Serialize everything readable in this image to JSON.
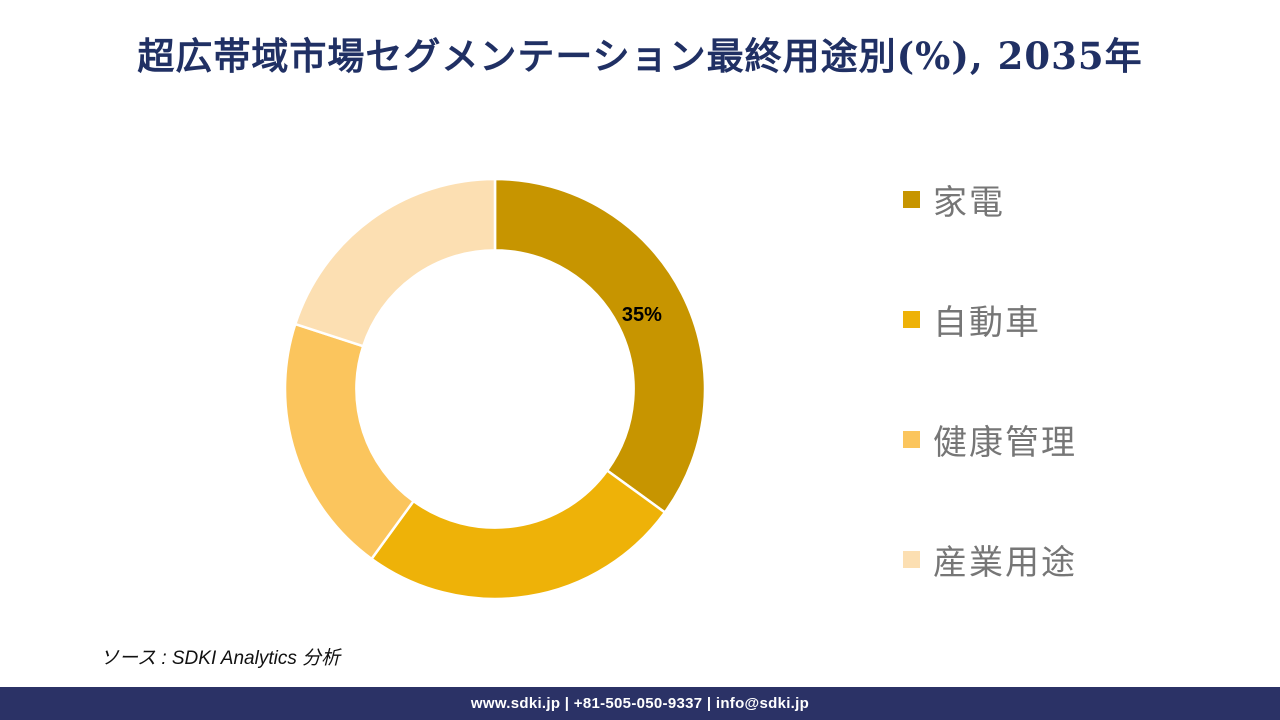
{
  "title": {
    "text": "超広帯域市場セグメンテーション最終用途別(%), 2035年",
    "color": "#203064"
  },
  "chart_data": {
    "type": "pie",
    "subtype": "donut",
    "title": "超広帯域市場セグメンテーション最終用途別(%), 2035年",
    "categories": [
      "家電",
      "自動車",
      "健康管理",
      "産業用途"
    ],
    "values": [
      35,
      25,
      20,
      20
    ],
    "unit": "%",
    "colors": [
      "#C79500",
      "#EEB208",
      "#FBC55D",
      "#FCDFB2"
    ],
    "data_labels": [
      {
        "category": "家電",
        "text": "35%"
      }
    ],
    "start_angle_deg": 0,
    "direction": "clockwise",
    "inner_radius_ratio": 0.66,
    "separator_color": "#FFFFFF",
    "legend_position": "right"
  },
  "legend": {
    "items": [
      {
        "label": "家電",
        "color": "#C79500"
      },
      {
        "label": "自動車",
        "color": "#EEB208"
      },
      {
        "label": "健康管理",
        "color": "#FBC55D"
      },
      {
        "label": "産業用途",
        "color": "#FCDFB2"
      }
    ]
  },
  "source_note": "ソース : SDKI Analytics 分析",
  "footer": {
    "text": "www.sdki.jp | +81-505-050-9337 | info@sdki.jp",
    "bar_color": "#2B3266",
    "text_color": "#FFFFFF"
  }
}
